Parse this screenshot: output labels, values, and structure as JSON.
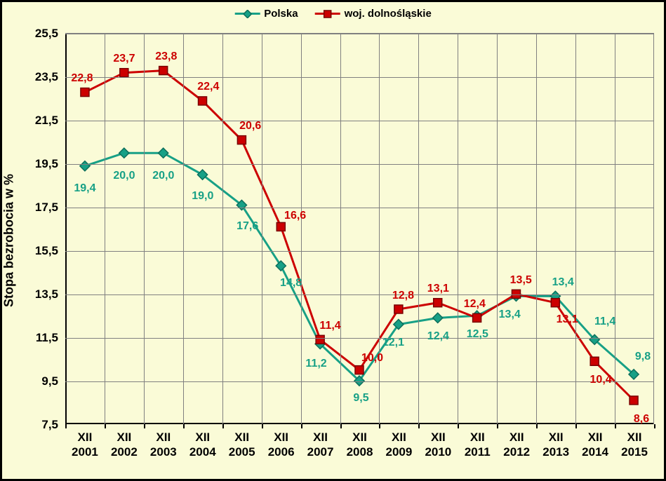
{
  "chart": {
    "type": "line",
    "background_color": "#fafbd7",
    "border_color": "#000000",
    "grid_color": "#808080",
    "y_axis_label": "Stopa bezrobocia w %",
    "y_axis_fontsize": 18,
    "tick_fontsize": 17,
    "data_label_fontsize": 16,
    "legend_fontsize": 15,
    "ylim": [
      7.5,
      25.5
    ],
    "ytick_step": 2.0,
    "yticks": [
      "7,5",
      "9,5",
      "11,5",
      "13,5",
      "15,5",
      "17,5",
      "19,5",
      "21,5",
      "23,5",
      "25,5"
    ],
    "categories": [
      "XII 2001",
      "XII 2002",
      "XII 2003",
      "XII 2004",
      "XII 2005",
      "XII 2006",
      "XII 2007",
      "XII 2008",
      "XII 2009",
      "XII 2010",
      "XII 2011",
      "XII 2012",
      "XII 2013",
      "XII 2014",
      "XII 2015"
    ],
    "series": [
      {
        "name": "Polska",
        "color": "#17a086",
        "label_color": "#17a086",
        "line_width": 3,
        "marker": "diamond",
        "marker_size": 10,
        "marker_fill": "#17a086",
        "marker_stroke": "#0d6f5c",
        "values": [
          19.4,
          20.0,
          20.0,
          19.0,
          17.6,
          14.8,
          11.2,
          9.5,
          12.1,
          12.4,
          12.5,
          13.4,
          13.4,
          11.4,
          9.8
        ],
        "value_labels": [
          "19,4",
          "20,0",
          "20,0",
          "19,0",
          "17,6",
          "14,8",
          "11,2",
          "9,5",
          "12,1",
          "12,4",
          "12,5",
          "13,4",
          "13,4",
          "11,4",
          "9,8"
        ],
        "label_offsets": [
          {
            "dx": 0,
            "dy": 32
          },
          {
            "dx": 0,
            "dy": 32
          },
          {
            "dx": 0,
            "dy": 32
          },
          {
            "dx": 0,
            "dy": 30
          },
          {
            "dx": 8,
            "dy": 30
          },
          {
            "dx": 14,
            "dy": 24
          },
          {
            "dx": -6,
            "dy": 28
          },
          {
            "dx": 2,
            "dy": 24
          },
          {
            "dx": -8,
            "dy": 26
          },
          {
            "dx": 0,
            "dy": 26
          },
          {
            "dx": 0,
            "dy": 26
          },
          {
            "dx": -10,
            "dy": 26
          },
          {
            "dx": 10,
            "dy": -20
          },
          {
            "dx": 14,
            "dy": -26
          },
          {
            "dx": 12,
            "dy": -26
          }
        ]
      },
      {
        "name": "woj. dolnośląskie",
        "color": "#cc0000",
        "label_color": "#cc0000",
        "line_width": 3,
        "marker": "square",
        "marker_size": 12,
        "marker_fill": "#cc0000",
        "marker_stroke": "#7a0000",
        "values": [
          22.8,
          23.7,
          23.8,
          22.4,
          20.6,
          16.6,
          11.4,
          10.0,
          12.8,
          13.1,
          12.4,
          13.5,
          13.1,
          10.4,
          8.6
        ],
        "value_labels": [
          "22,8",
          "23,7",
          "23,8",
          "22,4",
          "20,6",
          "16,6",
          "11,4",
          "10,0",
          "12,8",
          "13,1",
          "12,4",
          "13,5",
          "13,1",
          "10,4",
          "8,6"
        ],
        "label_offsets": [
          {
            "dx": -4,
            "dy": -20
          },
          {
            "dx": 0,
            "dy": -20
          },
          {
            "dx": 4,
            "dy": -20
          },
          {
            "dx": 8,
            "dy": -20
          },
          {
            "dx": 12,
            "dy": -20
          },
          {
            "dx": 20,
            "dy": -16
          },
          {
            "dx": 14,
            "dy": -20
          },
          {
            "dx": 18,
            "dy": -18
          },
          {
            "dx": 6,
            "dy": -20
          },
          {
            "dx": 0,
            "dy": -20
          },
          {
            "dx": -4,
            "dy": -20
          },
          {
            "dx": 6,
            "dy": -20
          },
          {
            "dx": 16,
            "dy": 24
          },
          {
            "dx": 8,
            "dy": 26
          },
          {
            "dx": 10,
            "dy": 26
          }
        ]
      }
    ]
  }
}
